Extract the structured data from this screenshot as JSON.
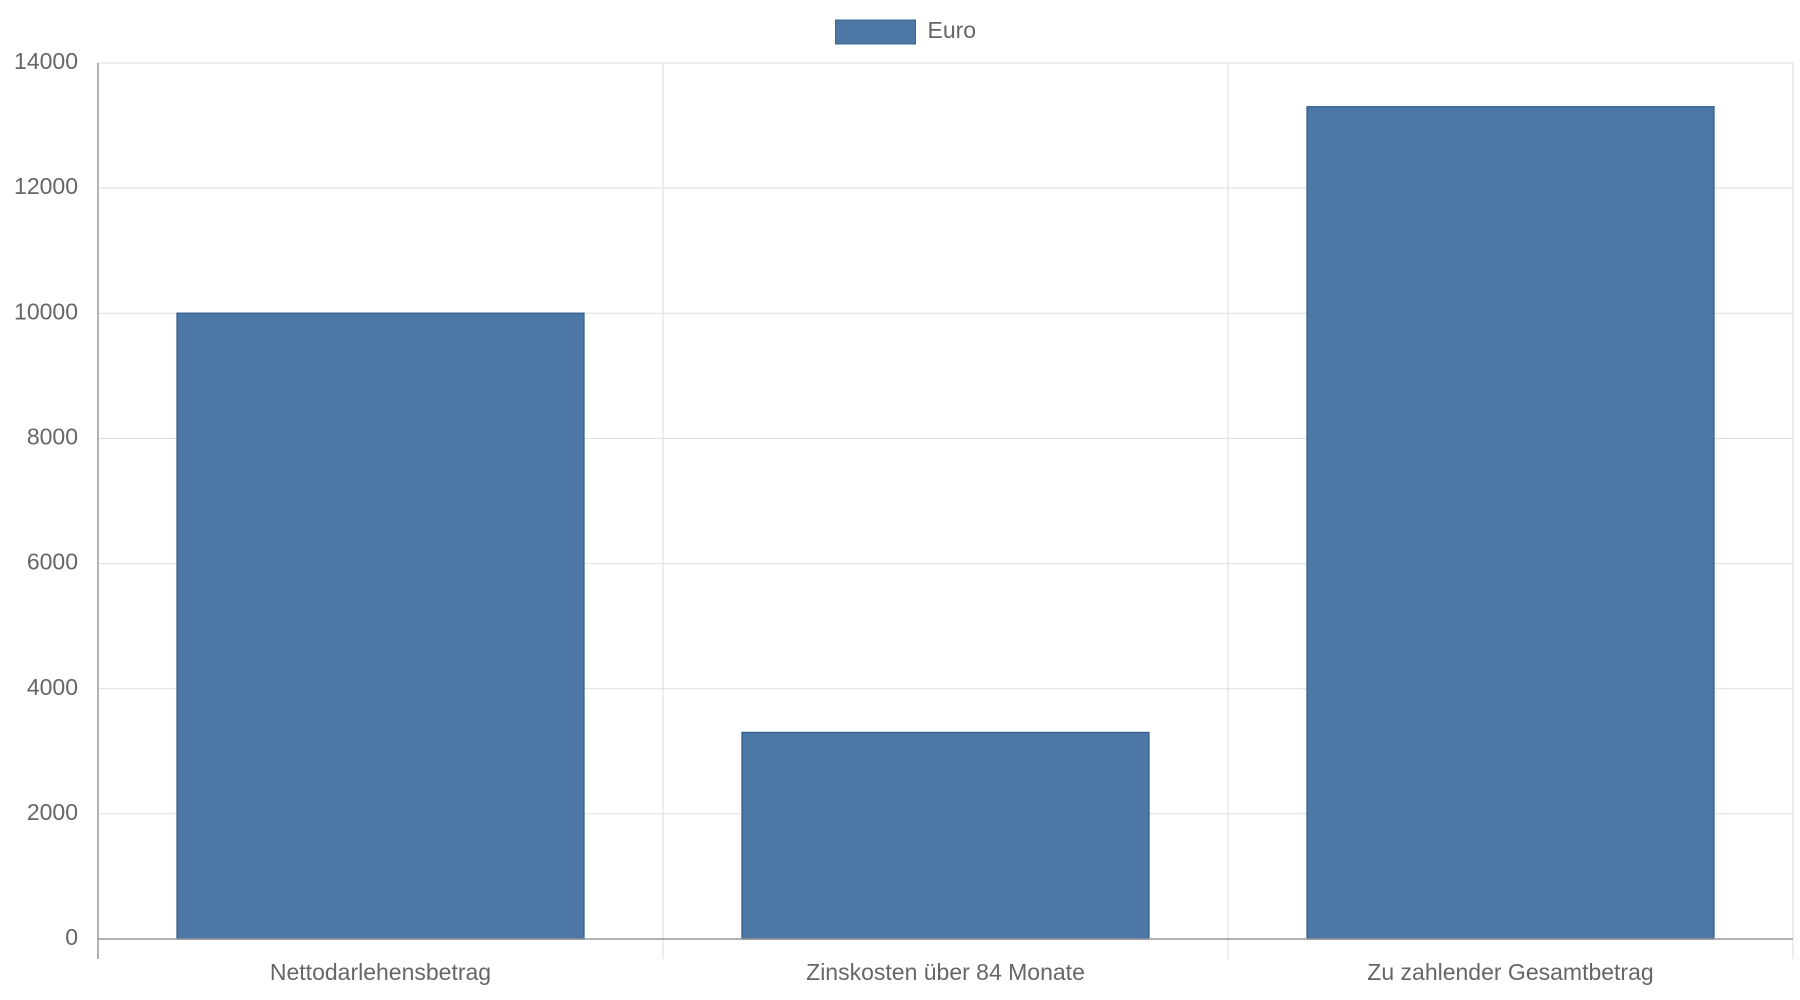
{
  "chart_data": {
    "type": "bar",
    "categories": [
      "Nettodarlehensbetrag",
      "Zinskosten über 84 Monate",
      "Zu zahlender Gesamtbetrag"
    ],
    "series": [
      {
        "name": "Euro",
        "color": "#4d78a6",
        "values": [
          10000,
          3300,
          13300
        ]
      }
    ],
    "ylim": [
      0,
      14000
    ],
    "yticks": [
      0,
      2000,
      4000,
      6000,
      8000,
      10000,
      12000,
      14000
    ],
    "grid": true,
    "legend": "top"
  }
}
